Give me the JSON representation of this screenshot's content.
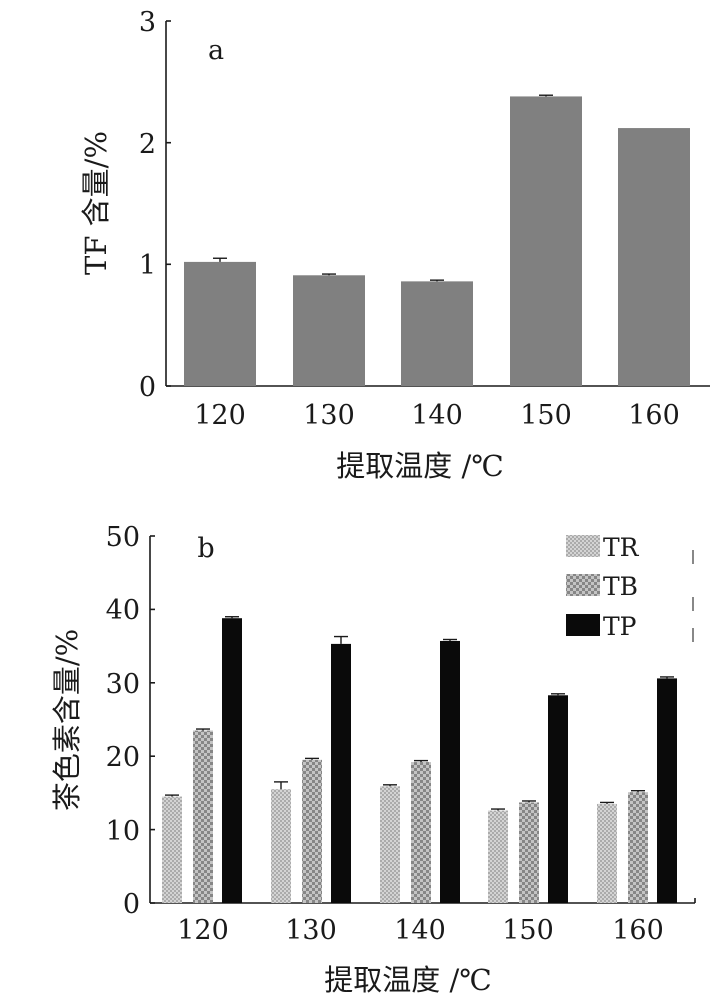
{
  "chart_data": [
    {
      "type": "bar",
      "panel_label": "a",
      "xlabel": "提取温度 /℃",
      "ylabel": "TF 含量/%",
      "categories": [
        "120",
        "130",
        "140",
        "150",
        "160"
      ],
      "series": [
        {
          "values": [
            1.02,
            0.91,
            0.86,
            2.38,
            2.12
          ],
          "errors": [
            0.03,
            0.01,
            0.01,
            0.01,
            0.0
          ],
          "color": "#808080"
        }
      ],
      "ylim": [
        0,
        3
      ],
      "yticks": [
        "0",
        "1",
        "2",
        "3"
      ],
      "grid": false,
      "legend": "none"
    },
    {
      "type": "bar",
      "panel_label": "b",
      "xlabel": "提取温度 /℃",
      "ylabel": "茶色素含量/%",
      "categories": [
        "120",
        "130",
        "140",
        "150",
        "160"
      ],
      "series": [
        {
          "name": "TR",
          "values": [
            14.5,
            15.5,
            15.9,
            12.6,
            13.5
          ],
          "errors": [
            0.2,
            1.0,
            0.2,
            0.2,
            0.2
          ],
          "pattern": "fine-check"
        },
        {
          "name": "TB",
          "values": [
            23.5,
            19.5,
            19.2,
            13.7,
            15.1
          ],
          "errors": [
            0.2,
            0.2,
            0.2,
            0.2,
            0.2
          ],
          "pattern": "coarse-check"
        },
        {
          "name": "TP",
          "values": [
            38.8,
            35.3,
            35.7,
            28.3,
            30.6
          ],
          "errors": [
            0.2,
            1.0,
            0.2,
            0.2,
            0.2
          ],
          "pattern": "solid-black"
        }
      ],
      "ylim": [
        0,
        50
      ],
      "yticks": [
        "0",
        "10",
        "20",
        "30",
        "40",
        "50"
      ],
      "grid": false,
      "legend": "top-right"
    }
  ]
}
